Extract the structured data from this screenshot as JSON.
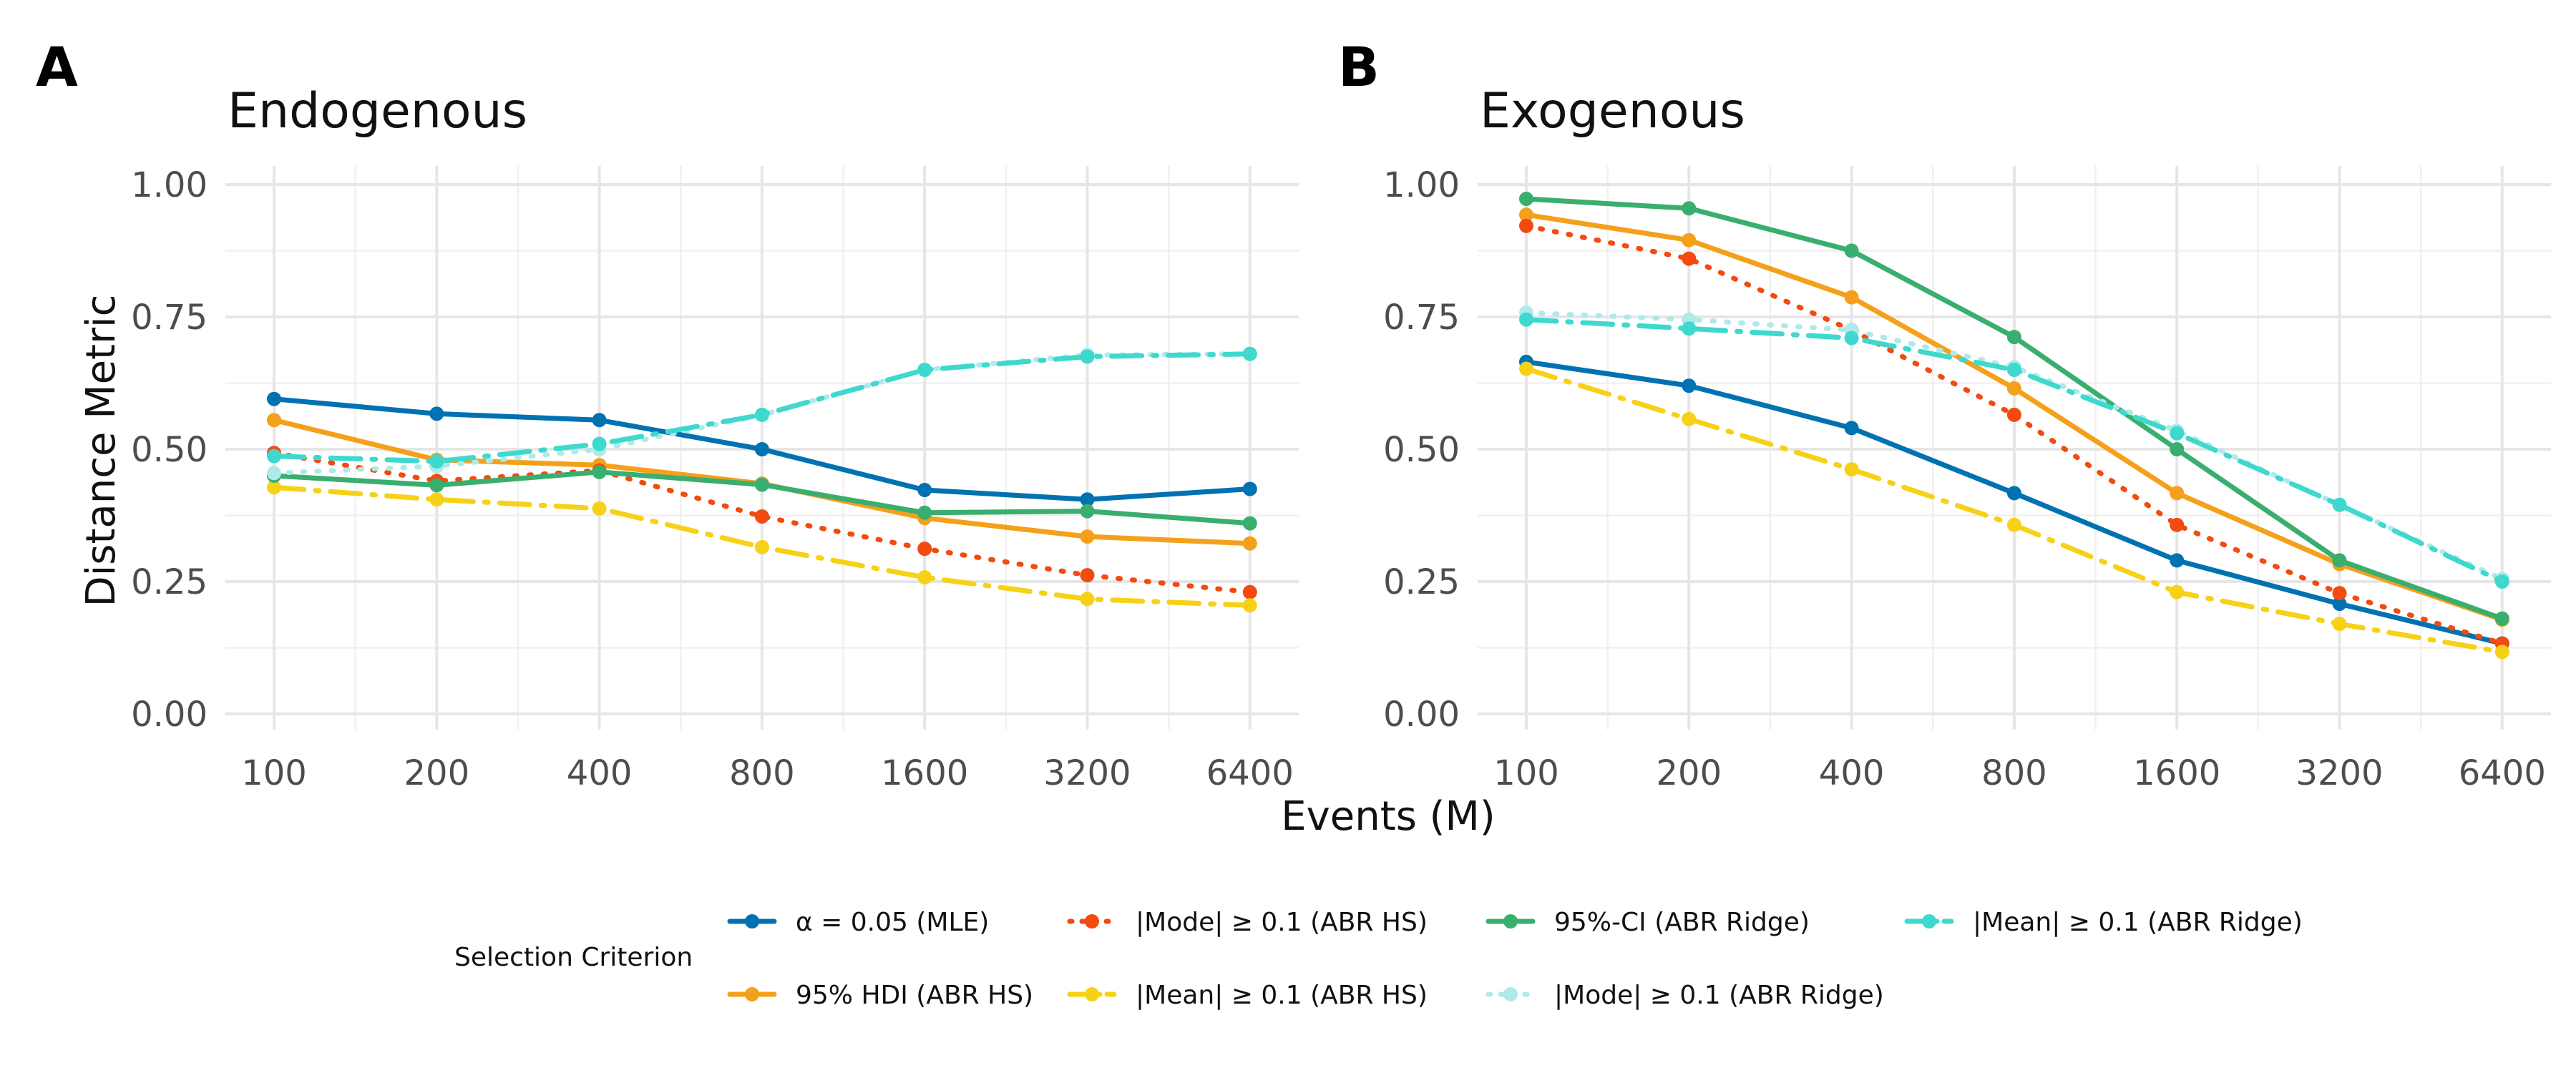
{
  "figure": {
    "xlabel": "Events (M)",
    "ylabel": "Distance Metric",
    "legend_title": "Selection Criterion"
  },
  "chart_data": [
    {
      "type": "line",
      "panel_label": "A",
      "title": "Endogenous",
      "xlabel": "Events (M)",
      "ylabel": "Distance Metric",
      "x_scale": "log2",
      "categories": [
        "100",
        "200",
        "400",
        "800",
        "1600",
        "3200",
        "6400"
      ],
      "ylim": [
        0,
        1
      ],
      "yticks": [
        "0.00",
        "0.25",
        "0.50",
        "0.75",
        "1.00"
      ],
      "grid": true,
      "legend_position": "bottom",
      "series": [
        {
          "name": "α = 0.05 (MLE)",
          "color": "#0072B2",
          "dash": "solid",
          "values": [
            0.595,
            0.567,
            0.555,
            0.5,
            0.423,
            0.405,
            0.425
          ]
        },
        {
          "name": "95% HDI (ABR HS)",
          "color": "#F5A01A",
          "dash": "solid",
          "values": [
            0.555,
            0.48,
            0.47,
            0.435,
            0.37,
            0.335,
            0.322
          ]
        },
        {
          "name": "|Mode| ≥ 0.1 (ABR HS)",
          "color": "#F24A0F",
          "dash": "dotted",
          "values": [
            0.493,
            0.44,
            0.46,
            0.373,
            0.312,
            0.262,
            0.23
          ]
        },
        {
          "name": "|Mean| ≥ 0.1 (ABR HS)",
          "color": "#F7D117",
          "dash": "dashdot",
          "values": [
            0.428,
            0.405,
            0.388,
            0.315,
            0.258,
            0.217,
            0.205
          ]
        },
        {
          "name": "95%-CI (ABR Ridge)",
          "color": "#3AAE6E",
          "dash": "solid",
          "values": [
            0.45,
            0.432,
            0.457,
            0.433,
            0.38,
            0.383,
            0.36
          ]
        },
        {
          "name": "|Mode| ≥ 0.1 (ABR Ridge)",
          "color": "#AEEAEA",
          "dash": "dotted",
          "values": [
            0.455,
            0.468,
            0.5,
            0.565,
            0.65,
            0.678,
            0.68
          ]
        },
        {
          "name": "|Mean| ≥ 0.1 (ABR Ridge)",
          "color": "#3FD8CE",
          "dash": "dashdot",
          "values": [
            0.487,
            0.477,
            0.51,
            0.565,
            0.65,
            0.675,
            0.68
          ]
        }
      ]
    },
    {
      "type": "line",
      "panel_label": "B",
      "title": "Exogenous",
      "xlabel": "Events (M)",
      "ylabel": "Distance Metric",
      "x_scale": "log2",
      "categories": [
        "100",
        "200",
        "400",
        "800",
        "1600",
        "3200",
        "6400"
      ],
      "ylim": [
        0,
        1
      ],
      "yticks": [
        "0.00",
        "0.25",
        "0.50",
        "0.75",
        "1.00"
      ],
      "grid": true,
      "legend_position": "bottom",
      "series": [
        {
          "name": "α = 0.05 (MLE)",
          "color": "#0072B2",
          "dash": "solid",
          "values": [
            0.665,
            0.62,
            0.54,
            0.417,
            0.29,
            0.208,
            0.133
          ]
        },
        {
          "name": "95% HDI (ABR HS)",
          "color": "#F5A01A",
          "dash": "solid",
          "values": [
            0.943,
            0.895,
            0.787,
            0.615,
            0.417,
            0.283,
            0.178
          ]
        },
        {
          "name": "|Mode| ≥ 0.1 (ABR HS)",
          "color": "#F24A0F",
          "dash": "dotted",
          "values": [
            0.922,
            0.86,
            0.725,
            0.565,
            0.357,
            0.228,
            0.133
          ]
        },
        {
          "name": "|Mean| ≥ 0.1 (ABR HS)",
          "color": "#F7D117",
          "dash": "dashdot",
          "values": [
            0.652,
            0.557,
            0.462,
            0.357,
            0.23,
            0.17,
            0.117
          ]
        },
        {
          "name": "95%-CI (ABR Ridge)",
          "color": "#3AAE6E",
          "dash": "solid",
          "values": [
            0.973,
            0.955,
            0.875,
            0.712,
            0.5,
            0.29,
            0.18
          ]
        },
        {
          "name": "|Mode| ≥ 0.1 (ABR Ridge)",
          "color": "#AEEAEA",
          "dash": "dotted",
          "values": [
            0.758,
            0.745,
            0.725,
            0.655,
            0.535,
            0.395,
            0.255
          ]
        },
        {
          "name": "|Mean| ≥ 0.1 (ABR Ridge)",
          "color": "#3FD8CE",
          "dash": "dashdot",
          "values": [
            0.745,
            0.728,
            0.71,
            0.65,
            0.53,
            0.395,
            0.25
          ]
        }
      ]
    }
  ],
  "legend": {
    "rows": [
      [
        "α = 0.05 (MLE)",
        "|Mode| ≥ 0.1 (ABR HS)",
        "95%-CI (ABR Ridge)",
        "|Mean| ≥ 0.1 (ABR Ridge)"
      ],
      [
        "95% HDI (ABR HS)",
        "|Mean| ≥ 0.1 (ABR HS)",
        "|Mode| ≥ 0.1 (ABR Ridge)"
      ]
    ]
  }
}
